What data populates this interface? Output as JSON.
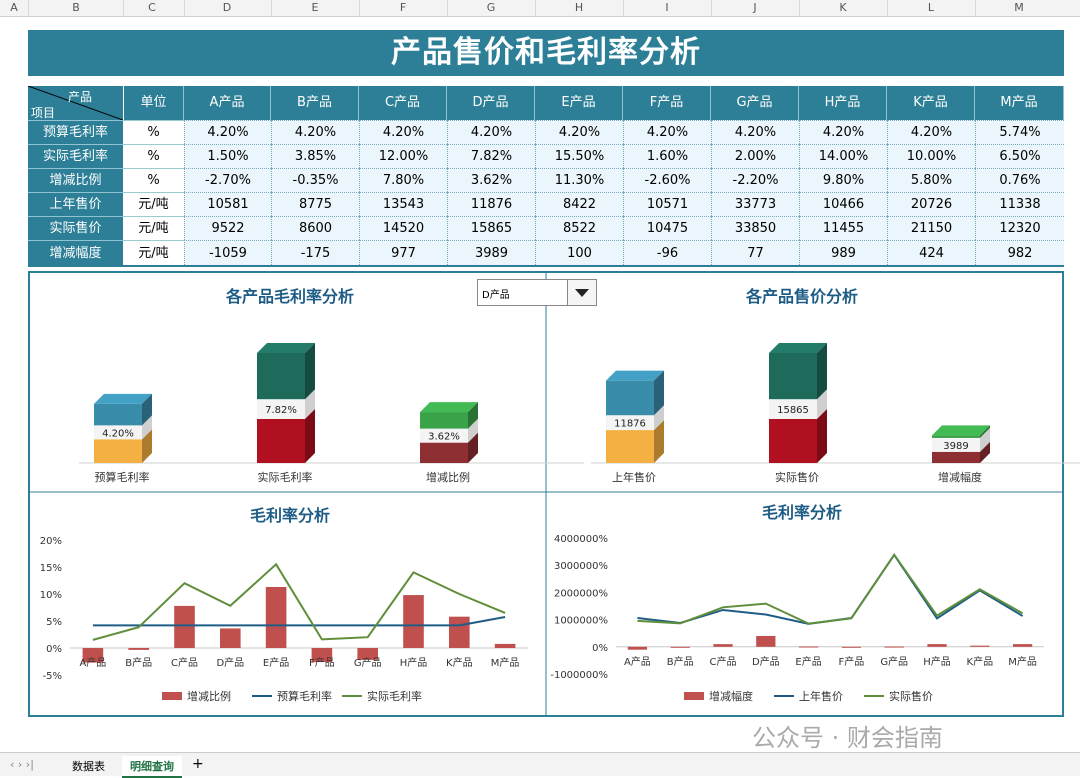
{
  "col_headers": [
    "A",
    "B",
    "C",
    "D",
    "E",
    "F",
    "G",
    "H",
    "I",
    "J",
    "K",
    "L",
    "M"
  ],
  "title": "产品售价和毛利率分析",
  "table": {
    "corner_top": "产品",
    "corner_bottom": "项目",
    "unit_header": "单位",
    "products": [
      "A产品",
      "B产品",
      "C产品",
      "D产品",
      "E产品",
      "F产品",
      "G产品",
      "H产品",
      "K产品",
      "M产品"
    ],
    "rows": [
      {
        "label": "预算毛利率",
        "unit": "%",
        "values": [
          "4.20%",
          "4.20%",
          "4.20%",
          "4.20%",
          "4.20%",
          "4.20%",
          "4.20%",
          "4.20%",
          "4.20%",
          "5.74%"
        ]
      },
      {
        "label": "实际毛利率",
        "unit": "%",
        "values": [
          "1.50%",
          "3.85%",
          "12.00%",
          "7.82%",
          "15.50%",
          "1.60%",
          "2.00%",
          "14.00%",
          "10.00%",
          "6.50%"
        ]
      },
      {
        "label": "增减比例",
        "unit": "%",
        "values": [
          "-2.70%",
          "-0.35%",
          "7.80%",
          "3.62%",
          "11.30%",
          "-2.60%",
          "-2.20%",
          "9.80%",
          "5.80%",
          "0.76%"
        ]
      },
      {
        "label": "上年售价",
        "unit": "元/吨",
        "values": [
          "10581",
          "8775",
          "13543",
          "11876",
          "8422",
          "10571",
          "33773",
          "10466",
          "20726",
          "11338"
        ]
      },
      {
        "label": "实际售价",
        "unit": "元/吨",
        "values": [
          "9522",
          "8600",
          "14520",
          "15865",
          "8522",
          "10475",
          "33850",
          "11455",
          "21150",
          "12320"
        ]
      },
      {
        "label": "增减幅度",
        "unit": "元/吨",
        "values": [
          "-1059",
          "-175",
          "977",
          "3989",
          "100",
          "-96",
          "77",
          "989",
          "424",
          "982"
        ]
      }
    ]
  },
  "dropdown": {
    "selected": "D产品"
  },
  "colors": {
    "header": "#2d7f97",
    "cell": "#eaf6fb",
    "bar": "#c0504d",
    "budget_line": "#1f5d86",
    "actual_line": "#5f8f3a"
  },
  "chart_data": [
    {
      "type": "bar",
      "title": "各产品毛利率分析",
      "categories": [
        "预算毛利率",
        "实际毛利率",
        "增减比例"
      ],
      "values": [
        4.2,
        7.82,
        3.62
      ],
      "data_labels": [
        "4.20%",
        "7.82%",
        "3.62%"
      ]
    },
    {
      "type": "bar",
      "title": "各产品售价分析",
      "categories": [
        "上年售价",
        "实际售价",
        "增减幅度"
      ],
      "values": [
        11876,
        15865,
        3989
      ],
      "data_labels": [
        "11876",
        "15865",
        "3989"
      ]
    },
    {
      "type": "line",
      "title": "毛利率分析",
      "categories": [
        "A产品",
        "B产品",
        "C产品",
        "D产品",
        "E产品",
        "F产品",
        "G产品",
        "H产品",
        "K产品",
        "M产品"
      ],
      "y_ticks": [
        "20%",
        "15%",
        "10%",
        "5%",
        "0%",
        "-5%"
      ],
      "ylim": [
        -5,
        20
      ],
      "series": [
        {
          "name": "增减比例",
          "kind": "bar",
          "values": [
            -2.7,
            -0.35,
            7.8,
            3.62,
            11.3,
            -2.6,
            -2.2,
            9.8,
            5.8,
            0.76
          ]
        },
        {
          "name": "预算毛利率",
          "kind": "line",
          "values": [
            4.2,
            4.2,
            4.2,
            4.2,
            4.2,
            4.2,
            4.2,
            4.2,
            4.2,
            5.74
          ]
        },
        {
          "name": "实际毛利率",
          "kind": "line",
          "values": [
            1.5,
            3.85,
            12.0,
            7.82,
            15.5,
            1.6,
            2.0,
            14.0,
            10.0,
            6.5
          ]
        }
      ]
    },
    {
      "type": "line",
      "title": "毛利率分析",
      "categories": [
        "A产品",
        "B产品",
        "C产品",
        "D产品",
        "E产品",
        "F产品",
        "G产品",
        "H产品",
        "K产品",
        "M产品"
      ],
      "y_ticks": [
        "4000000%",
        "3000000%",
        "2000000%",
        "1000000%",
        "0%",
        "-1000000%"
      ],
      "ylim": [
        -10000,
        40000
      ],
      "series": [
        {
          "name": "增减幅度",
          "kind": "bar",
          "values": [
            -1059,
            -175,
            977,
            3989,
            100,
            -96,
            77,
            989,
            424,
            982
          ]
        },
        {
          "name": "上年售价",
          "kind": "line",
          "values": [
            10581,
            8775,
            13543,
            11876,
            8422,
            10571,
            33773,
            10466,
            20726,
            11338
          ]
        },
        {
          "name": "实际售价",
          "kind": "line",
          "values": [
            9522,
            8600,
            14520,
            15865,
            8522,
            10475,
            33850,
            11455,
            21150,
            12320
          ]
        }
      ]
    }
  ],
  "sheet_tabs": [
    "数据表",
    "明细查询"
  ],
  "watermark": "公众号 · 财会指南"
}
